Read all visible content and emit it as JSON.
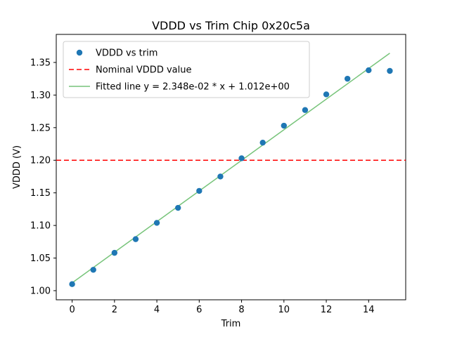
{
  "chart_data": {
    "type": "scatter",
    "title": "VDDD vs Trim Chip 0x20c5a",
    "xlabel": "Trim",
    "ylabel": "VDDD (V)",
    "x": [
      0,
      1,
      2,
      3,
      4,
      5,
      6,
      7,
      8,
      9,
      10,
      11,
      12,
      13,
      14,
      15
    ],
    "series": [
      {
        "name": "VDDD vs trim",
        "kind": "scatter",
        "color": "#1f77b4",
        "values": [
          1.01,
          1.032,
          1.058,
          1.079,
          1.104,
          1.127,
          1.153,
          1.175,
          1.203,
          1.227,
          1.253,
          1.277,
          1.301,
          1.325,
          1.338,
          1.337
        ]
      },
      {
        "name": "Nominal VDDD value",
        "kind": "hline",
        "color": "#ff0000",
        "linestyle": "dashed",
        "value": 1.2
      },
      {
        "name": "Fitted line y = 2.348e-02 * x + 1.012e+00",
        "kind": "fitline",
        "color": "#77c47a",
        "slope": 0.02348,
        "intercept": 1.012,
        "x_start": 0,
        "x_end": 15
      }
    ],
    "xlim": [
      -0.75,
      15.75
    ],
    "ylim": [
      0.986,
      1.393
    ],
    "xticks": [
      0,
      2,
      4,
      6,
      8,
      10,
      12,
      14
    ],
    "yticks": [
      1.0,
      1.05,
      1.1,
      1.15,
      1.2,
      1.25,
      1.3,
      1.35
    ],
    "legend_position": "upper left",
    "grid": false,
    "frame_color": "#000000",
    "legend_edge_color": "#cccccc"
  }
}
